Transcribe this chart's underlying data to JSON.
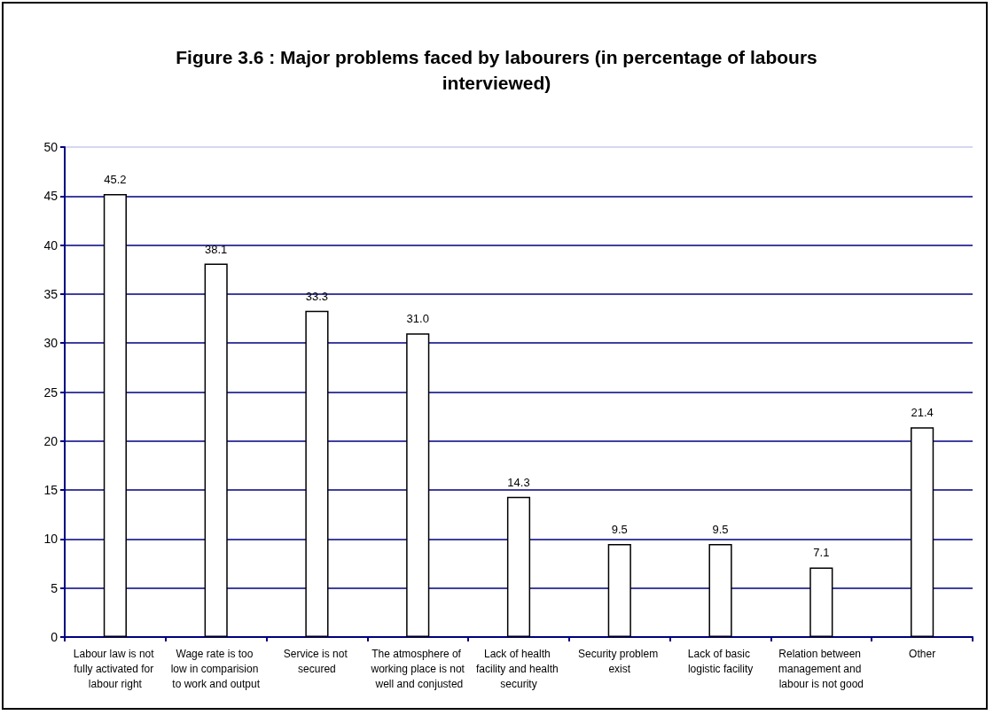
{
  "chart_data": {
    "type": "bar",
    "title": "Figure 3.6 : Major problems faced by labourers (in percentage of labours interviewed)",
    "categories": [
      "Labour law is not fully activated for labour right",
      "Wage rate is too low in comparision to work and output",
      "Service is not secured",
      "The atmosphere of working place is not well and conjusted",
      "Lack of health facility and health security",
      "Security problem exist",
      "Lack of basic logistic facility",
      "Relation between management and labour is not good",
      "Other"
    ],
    "values": [
      45.2,
      38.1,
      33.3,
      31.0,
      14.3,
      9.5,
      9.5,
      7.1,
      21.4
    ],
    "value_labels": [
      "45.2",
      "38.1",
      "33.3",
      "31.0",
      "14.3",
      "9.5",
      "9.5",
      "7.1",
      "21.4"
    ],
    "color": "#ffffff",
    "ylim": [
      0,
      50
    ],
    "yticks": [
      0,
      5,
      10,
      15,
      20,
      25,
      30,
      35,
      40,
      45,
      50
    ],
    "grid": "y"
  }
}
